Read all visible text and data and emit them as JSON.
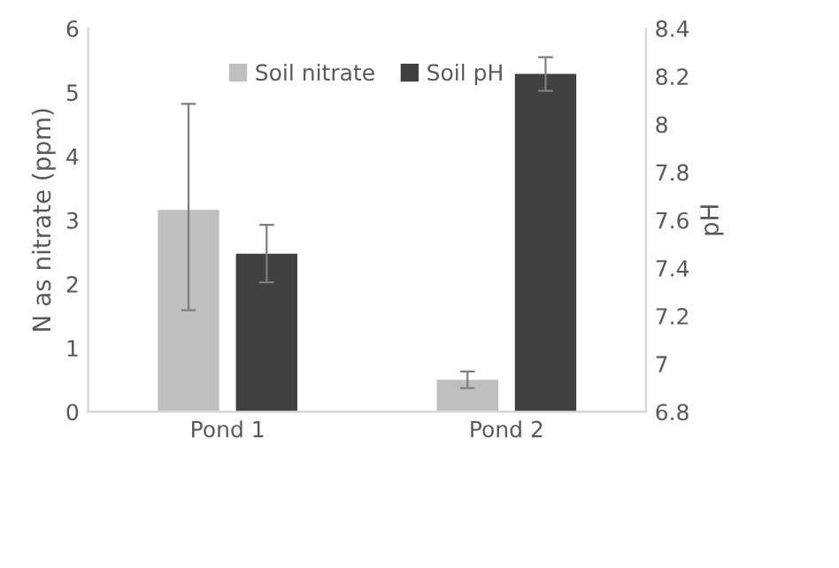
{
  "chart_data": {
    "type": "bar",
    "categories": [
      "Pond 1",
      "Pond 2"
    ],
    "ylabel": "N as nitrate (ppm)",
    "y2label": "pH",
    "series": [
      {
        "name": "Soil nitrate",
        "color": "#bfbfbf",
        "values": [
          3.16,
          0.5
        ],
        "errors": [
          [
            1.59,
            4.82
          ],
          [
            0.37,
            0.63
          ]
        ]
      },
      {
        "name": "Soil pH",
        "color": "#404040",
        "values": [
          7.46,
          8.21
        ],
        "errors": [
          [
            7.34,
            7.58
          ],
          [
            8.14,
            8.28
          ]
        ],
        "axis": "y2"
      }
    ],
    "ylim": [
      0,
      6
    ],
    "yticks": [
      0,
      1,
      2,
      3,
      4,
      5,
      6
    ],
    "y2lim": [
      6.8,
      8.4
    ],
    "y2ticks": [
      {
        "value": 6.8,
        "label": "6.8"
      },
      {
        "value": 7.0,
        "label": "7"
      },
      {
        "value": 7.2,
        "label": "7.2"
      },
      {
        "value": 7.4,
        "label": "7.4"
      },
      {
        "value": 7.6,
        "label": "7.6"
      },
      {
        "value": 7.8,
        "label": "7.8"
      },
      {
        "value": 8.0,
        "label": "8"
      },
      {
        "value": 8.2,
        "label": "8.2"
      },
      {
        "value": 8.4,
        "label": "8.4"
      }
    ],
    "grid": false,
    "legend": "top"
  }
}
